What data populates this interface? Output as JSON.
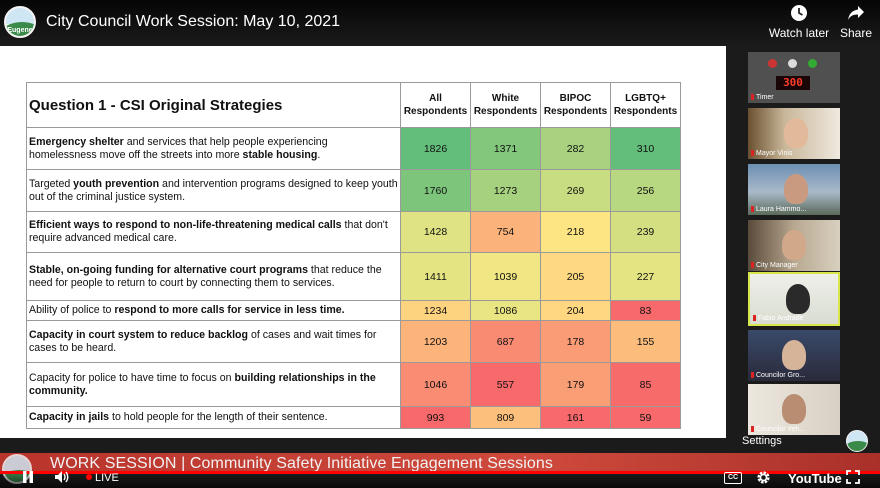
{
  "header": {
    "logo_text": "Eugene",
    "title": "City Council Work Session: May 10, 2021",
    "watch_later_label": "Watch later",
    "share_label": "Share"
  },
  "table": {
    "question_title": "Question 1 - CSI Original Strategies",
    "columns": [
      "All\nRespondents",
      "White\nRespondents",
      "BIPOC\nRespondents",
      "LGBTQ+\nRespondents"
    ],
    "rows": [
      {
        "label_parts": [
          {
            "text": "Emergency shelter",
            "bold": true
          },
          {
            "text": " and services that help people experiencing homelessness move off the streets into more ",
            "bold": false
          },
          {
            "text": "stable housing",
            "bold": true
          },
          {
            "text": ".",
            "bold": false
          }
        ],
        "values": [
          "1826",
          "1371",
          "282",
          "310"
        ],
        "colors": [
          "#63be7b",
          "#82c77c",
          "#a8d27f",
          "#63be7b"
        ]
      },
      {
        "label_parts": [
          {
            "text": "Targeted ",
            "bold": false
          },
          {
            "text": "youth prevention",
            "bold": true
          },
          {
            "text": " and intervention programs designed to keep youth out of the criminal justice system.",
            "bold": false
          }
        ],
        "values": [
          "1760",
          "1273",
          "269",
          "256"
        ],
        "colors": [
          "#7ec57c",
          "#a6d17f",
          "#c8dc81",
          "#b7d780"
        ]
      },
      {
        "label_parts": [
          {
            "text": "Efficient ways to respond to non-life-threatening medical calls",
            "bold": true
          },
          {
            "text": " that don't require advanced medical care.",
            "bold": false
          }
        ],
        "values": [
          "1428",
          "754",
          "218",
          "239"
        ],
        "colors": [
          "#dfe383",
          "#fbb27b",
          "#fde583",
          "#d4df82"
        ]
      },
      {
        "label_parts": [
          {
            "text": "Stable, on-going funding for alternative court programs",
            "bold": true
          },
          {
            "text": " that reduce the need for people to return to court by connecting them to services.",
            "bold": false
          }
        ],
        "values": [
          "1411",
          "1039",
          "205",
          "227"
        ],
        "colors": [
          "#e4e483",
          "#f0e784",
          "#fed981",
          "#e5e483"
        ]
      },
      {
        "label_parts": [
          {
            "text": "Ability of police to ",
            "bold": false
          },
          {
            "text": "respond to more calls for service in less time.",
            "bold": true
          }
        ],
        "values": [
          "1234",
          "1086",
          "204",
          "83"
        ],
        "colors": [
          "#fed380",
          "#e9e583",
          "#fed780",
          "#f8696b"
        ]
      },
      {
        "label_parts": [
          {
            "text": "Capacity in court system to reduce backlog",
            "bold": true
          },
          {
            "text": " of cases and wait times for cases to be heard.",
            "bold": false
          }
        ],
        "values": [
          "1203",
          "687",
          "178",
          "155"
        ],
        "colors": [
          "#fcb47b",
          "#f98b73",
          "#fa9d76",
          "#fcbc7c"
        ]
      },
      {
        "label_parts": [
          {
            "text": "Capacity for police to have time to focus on ",
            "bold": false
          },
          {
            "text": "building relationships in the community.",
            "bold": true
          }
        ],
        "values": [
          "1046",
          "557",
          "179",
          "85"
        ],
        "colors": [
          "#f98c73",
          "#f8696b",
          "#fa9e76",
          "#f86b6b"
        ]
      },
      {
        "label_parts": [
          {
            "text": "Capacity in jails",
            "bold": true
          },
          {
            "text": " to hold people for the length of their sentence.",
            "bold": false
          }
        ],
        "values": [
          "993",
          "809",
          "161",
          "59"
        ],
        "colors": [
          "#f8696b",
          "#fcc07c",
          "#f8696b",
          "#f8696b"
        ]
      }
    ]
  },
  "participants": [
    {
      "name": "Timer",
      "timer_display": "300"
    },
    {
      "name": "Mayor Vinis"
    },
    {
      "name": "Laura Hammo..."
    },
    {
      "name": "City Manager"
    },
    {
      "name": "Fabio Andrade"
    },
    {
      "name": "Councilor Gro..."
    },
    {
      "name": "Councilor Yeh..."
    }
  ],
  "overlay": {
    "settings_label": "Settings",
    "banner_text": "WORK SESSION | Community Safety Initiative Engagement Sessions"
  },
  "player": {
    "live_label": "LIVE",
    "cc_label": "CC",
    "youtube_label": "YouTube"
  }
}
